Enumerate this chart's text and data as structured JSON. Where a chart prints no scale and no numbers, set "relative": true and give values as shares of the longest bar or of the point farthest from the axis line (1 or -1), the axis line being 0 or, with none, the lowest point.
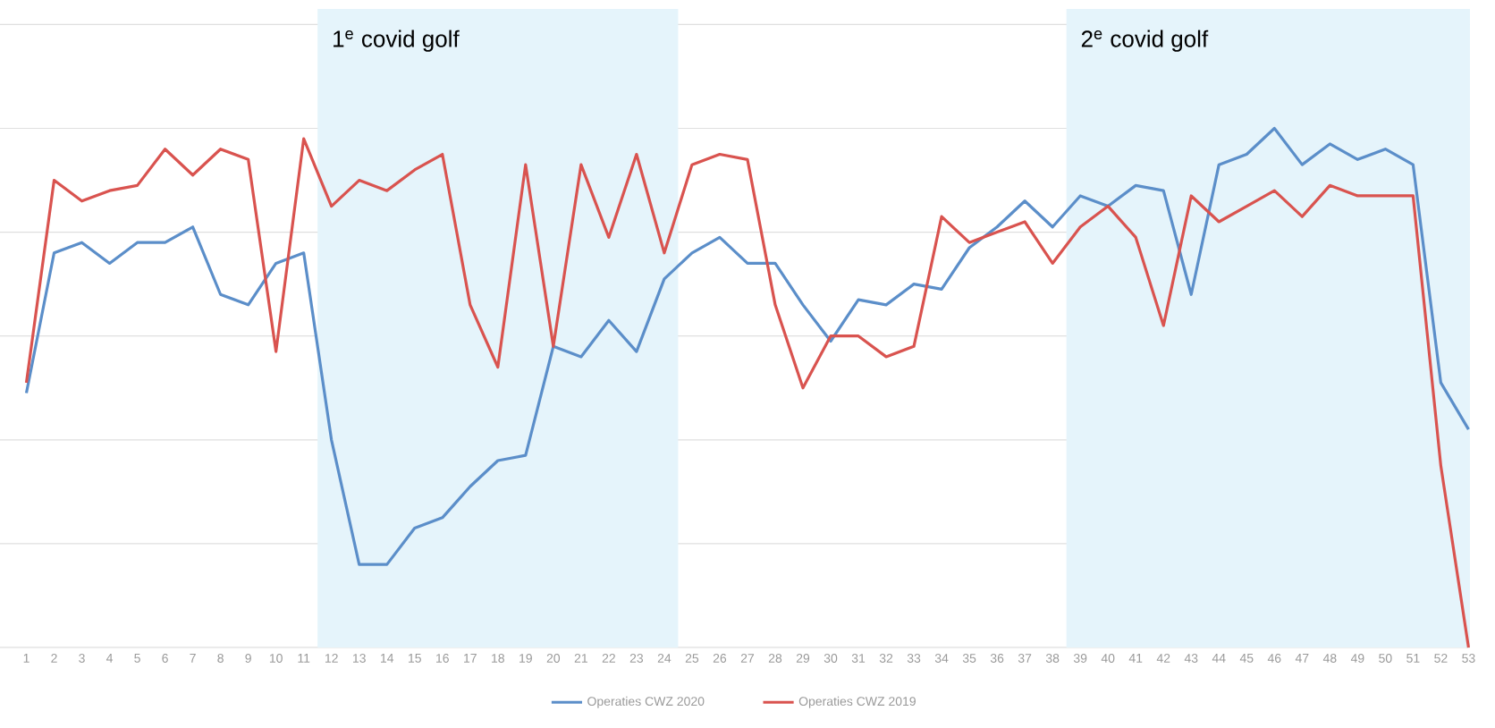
{
  "chart_data": {
    "type": "line",
    "relative": true,
    "grid": "y",
    "legend": "bottom",
    "marker": "none",
    "line_style": "solid",
    "categories": [
      "1",
      "2",
      "3",
      "4",
      "5",
      "6",
      "7",
      "8",
      "9",
      "10",
      "11",
      "12",
      "13",
      "14",
      "15",
      "16",
      "17",
      "18",
      "19",
      "20",
      "21",
      "22",
      "23",
      "24",
      "25",
      "26",
      "27",
      "28",
      "29",
      "30",
      "31",
      "32",
      "33",
      "34",
      "35",
      "36",
      "37",
      "38",
      "39",
      "40",
      "41",
      "42",
      "43",
      "44",
      "45",
      "46",
      "47",
      "48",
      "49",
      "50",
      "51",
      "52",
      "53"
    ],
    "series": [
      {
        "name": "Operaties CWZ 2020",
        "color": "#5b8ec9",
        "values": [
          0.49,
          0.76,
          0.78,
          0.74,
          0.78,
          0.78,
          0.81,
          0.68,
          0.66,
          0.74,
          0.76,
          0.4,
          0.16,
          0.16,
          0.23,
          0.25,
          0.31,
          0.36,
          0.37,
          0.58,
          0.56,
          0.63,
          0.57,
          0.71,
          0.76,
          0.79,
          0.74,
          0.74,
          0.66,
          0.59,
          0.67,
          0.66,
          0.7,
          0.69,
          0.77,
          0.81,
          0.86,
          0.81,
          0.87,
          0.85,
          0.89,
          0.88,
          0.68,
          0.93,
          0.95,
          1,
          0.93,
          0.97,
          0.94,
          0.96,
          0.93,
          0.51,
          0.42
        ]
      },
      {
        "name": "Operaties CWZ 2019",
        "color": "#d9534f",
        "values": [
          0.51,
          0.9,
          0.86,
          0.88,
          0.89,
          0.96,
          0.91,
          0.96,
          0.94,
          0.57,
          0.98,
          0.85,
          0.9,
          0.88,
          0.92,
          0.95,
          0.66,
          0.54,
          0.93,
          0.58,
          0.93,
          0.79,
          0.95,
          0.76,
          0.93,
          0.95,
          0.94,
          0.66,
          0.5,
          0.6,
          0.6,
          0.56,
          0.58,
          0.83,
          0.78,
          0.8,
          0.82,
          0.74,
          0.81,
          0.85,
          0.79,
          0.62,
          0.87,
          0.82,
          0.85,
          0.88,
          0.83,
          0.89,
          0.87,
          0.87,
          0.87,
          0.35,
          0
        ]
      }
    ],
    "bands": [
      {
        "axis": "x",
        "from": "12",
        "to": "24",
        "label": "1$^{e}$ covid golf",
        "color": "#e5f4fb"
      },
      {
        "axis": "x",
        "from": "39",
        "to": "53",
        "label": "2$^{e}$ covid golf",
        "color": "#e5f4fb"
      }
    ]
  }
}
